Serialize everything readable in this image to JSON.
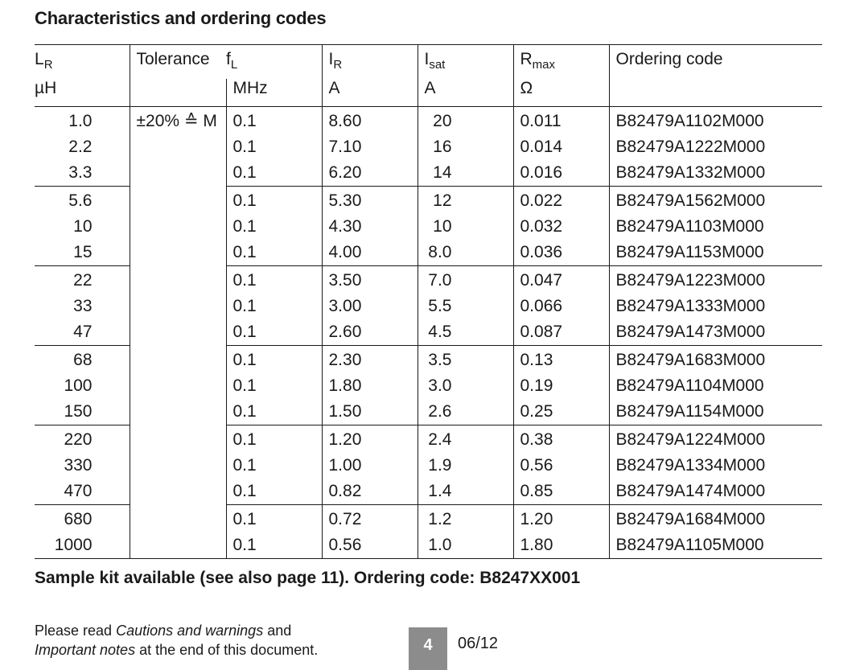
{
  "title": "Characteristics and ordering codes",
  "table": {
    "headers": {
      "lr_main": "L",
      "lr_sub": "R",
      "lr_unit": "µH",
      "tolerance": "Tolerance",
      "fl_main": "f",
      "fl_sub": "L",
      "fl_unit": "MHz",
      "ir_main": "I",
      "ir_sub": "R",
      "ir_unit": "A",
      "isat_main": "I",
      "isat_sub": "sat",
      "isat_unit": "A",
      "rmax_main": "R",
      "rmax_sub": "max",
      "rmax_unit": "Ω",
      "code": "Ordering code"
    },
    "tolerance_value": "±20% ≙ M",
    "rows": [
      {
        "lr": "1.0",
        "fl": "0.1",
        "ir": "8.60",
        "isat": "20",
        "rmax": "0.011",
        "code": "B82479A1102M000"
      },
      {
        "lr": "2.2",
        "fl": "0.1",
        "ir": "7.10",
        "isat": "16",
        "rmax": "0.014",
        "code": "B82479A1222M000"
      },
      {
        "lr": "3.3",
        "fl": "0.1",
        "ir": "6.20",
        "isat": "14",
        "rmax": "0.016",
        "code": "B82479A1332M000"
      },
      {
        "lr": "5.6",
        "fl": "0.1",
        "ir": "5.30",
        "isat": "12",
        "rmax": "0.022",
        "code": "B82479A1562M000"
      },
      {
        "lr": "10",
        "fl": "0.1",
        "ir": "4.30",
        "isat": "10",
        "rmax": "0.032",
        "code": "B82479A1103M000"
      },
      {
        "lr": "15",
        "fl": "0.1",
        "ir": "4.00",
        "isat": "8.0",
        "rmax": "0.036",
        "code": "B82479A1153M000"
      },
      {
        "lr": "22",
        "fl": "0.1",
        "ir": "3.50",
        "isat": "7.0",
        "rmax": "0.047",
        "code": "B82479A1223M000"
      },
      {
        "lr": "33",
        "fl": "0.1",
        "ir": "3.00",
        "isat": "5.5",
        "rmax": "0.066",
        "code": "B82479A1333M000"
      },
      {
        "lr": "47",
        "fl": "0.1",
        "ir": "2.60",
        "isat": "4.5",
        "rmax": "0.087",
        "code": "B82479A1473M000"
      },
      {
        "lr": "68",
        "fl": "0.1",
        "ir": "2.30",
        "isat": "3.5",
        "rmax": "0.13",
        "code": "B82479A1683M000"
      },
      {
        "lr": "100",
        "fl": "0.1",
        "ir": "1.80",
        "isat": "3.0",
        "rmax": "0.19",
        "code": "B82479A1104M000"
      },
      {
        "lr": "150",
        "fl": "0.1",
        "ir": "1.50",
        "isat": "2.6",
        "rmax": "0.25",
        "code": "B82479A1154M000"
      },
      {
        "lr": "220",
        "fl": "0.1",
        "ir": "1.20",
        "isat": "2.4",
        "rmax": "0.38",
        "code": "B82479A1224M000"
      },
      {
        "lr": "330",
        "fl": "0.1",
        "ir": "1.00",
        "isat": "1.9",
        "rmax": "0.56",
        "code": "B82479A1334M000"
      },
      {
        "lr": "470",
        "fl": "0.1",
        "ir": "0.82",
        "isat": "1.4",
        "rmax": "0.85",
        "code": "B82479A1474M000"
      },
      {
        "lr": "680",
        "fl": "0.1",
        "ir": "0.72",
        "isat": "1.2",
        "rmax": "1.20",
        "code": "B82479A1684M000"
      },
      {
        "lr": "1000",
        "fl": "0.1",
        "ir": "0.56",
        "isat": "1.0",
        "rmax": "1.80",
        "code": "B82479A1105M000"
      }
    ]
  },
  "sample_kit": "Sample kit available (see also page 11). Ordering code: B8247XX001",
  "footer": {
    "note_line1_pre": "Please read ",
    "note_line1_italic": "Cautions and warnings",
    "note_line1_post": " and",
    "note_line2_italic": "Important notes",
    "note_line2_post": " at the end of this document.",
    "page_number": "4",
    "date": "06/12"
  }
}
